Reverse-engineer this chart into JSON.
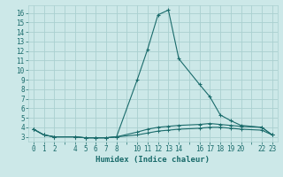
{
  "xlabel": "Humidex (Indice chaleur)",
  "bg_color": "#cce8e8",
  "line_color": "#1a6b6b",
  "grid_color": "#aad0d0",
  "xlim": [
    -0.5,
    23.5
  ],
  "ylim": [
    2.5,
    16.8
  ],
  "xtick_positions": [
    0,
    1,
    2,
    3,
    4,
    5,
    6,
    7,
    8,
    9,
    10,
    11,
    12,
    13,
    14,
    15,
    16,
    17,
    18,
    19,
    20,
    21,
    22,
    23
  ],
  "xtick_labels": [
    "0",
    "1",
    "2",
    "",
    "4",
    "5",
    "6",
    "7",
    "8",
    "",
    "10",
    "11",
    "12",
    "13",
    "14",
    "",
    "16",
    "17",
    "18",
    "19",
    "20",
    "",
    "22",
    "23"
  ],
  "ytick_positions": [
    3,
    4,
    5,
    6,
    7,
    8,
    9,
    10,
    11,
    12,
    13,
    14,
    15,
    16
  ],
  "ytick_labels": [
    "3",
    "4",
    "5",
    "6",
    "7",
    "8",
    "9",
    "10",
    "11",
    "12",
    "13",
    "14",
    "15",
    "16"
  ],
  "curve1_x": [
    0,
    1,
    2,
    4,
    5,
    6,
    7,
    8,
    10,
    11,
    12,
    13,
    14,
    16,
    17,
    18,
    19,
    20,
    22,
    23
  ],
  "curve1_y": [
    3.8,
    3.2,
    3.0,
    3.0,
    2.9,
    2.9,
    2.9,
    3.0,
    9.0,
    12.2,
    15.8,
    16.3,
    11.2,
    8.5,
    7.2,
    5.3,
    4.7,
    4.2,
    4.0,
    3.2
  ],
  "curve2_x": [
    0,
    1,
    2,
    4,
    5,
    6,
    7,
    8,
    10,
    11,
    12,
    13,
    14,
    16,
    17,
    18,
    19,
    20,
    22,
    23
  ],
  "curve2_y": [
    3.8,
    3.2,
    3.0,
    3.0,
    2.9,
    2.9,
    2.9,
    3.0,
    3.5,
    3.8,
    4.0,
    4.1,
    4.2,
    4.3,
    4.4,
    4.3,
    4.2,
    4.1,
    4.0,
    3.2
  ],
  "curve3_x": [
    0,
    1,
    2,
    4,
    5,
    6,
    7,
    8,
    10,
    11,
    12,
    13,
    14,
    16,
    17,
    18,
    19,
    20,
    22,
    23
  ],
  "curve3_y": [
    3.8,
    3.2,
    3.0,
    3.0,
    2.9,
    2.9,
    2.9,
    3.0,
    3.2,
    3.4,
    3.6,
    3.7,
    3.8,
    3.9,
    4.0,
    4.0,
    3.9,
    3.8,
    3.7,
    3.2
  ]
}
